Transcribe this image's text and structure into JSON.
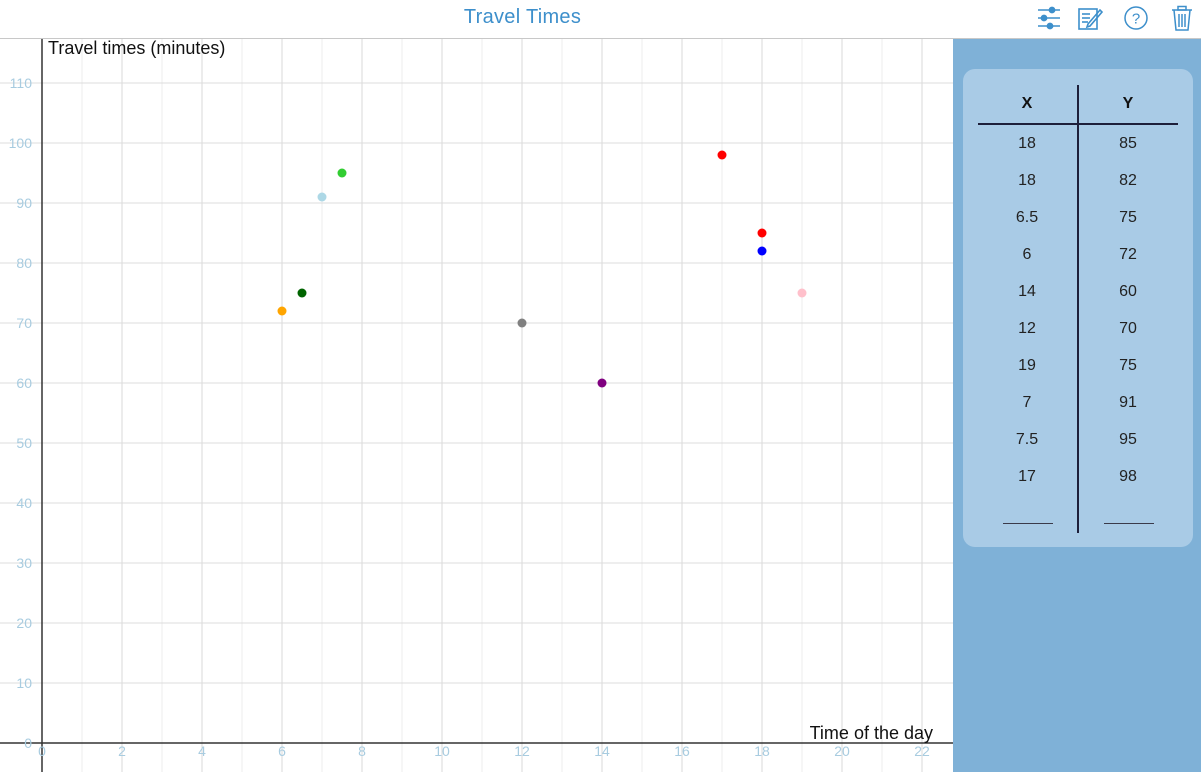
{
  "app": {
    "title": "Travel Times"
  },
  "toolbar": {
    "items": [
      {
        "name": "settings-sliders-icon"
      },
      {
        "name": "edit-note-icon"
      },
      {
        "name": "help-icon"
      },
      {
        "name": "trash-icon"
      }
    ]
  },
  "chart_data": {
    "type": "scatter",
    "title": "",
    "xlabel": "Time of the day",
    "ylabel": "Travel times (minutes)",
    "xlim": [
      0,
      22
    ],
    "ylim": [
      0,
      110
    ],
    "x_ticks": [
      0,
      2,
      4,
      6,
      8,
      10,
      12,
      14,
      16,
      18,
      20,
      22
    ],
    "y_ticks": [
      0,
      10,
      20,
      30,
      40,
      50,
      60,
      70,
      80,
      90,
      100,
      110
    ],
    "grid": true,
    "points": [
      {
        "x": 18,
        "y": 85,
        "color": "#ff0000"
      },
      {
        "x": 18,
        "y": 82,
        "color": "#0000ff"
      },
      {
        "x": 6.5,
        "y": 75,
        "color": "#006400"
      },
      {
        "x": 6,
        "y": 72,
        "color": "#ffa500"
      },
      {
        "x": 14,
        "y": 60,
        "color": "#800080"
      },
      {
        "x": 12,
        "y": 70,
        "color": "#808080"
      },
      {
        "x": 19,
        "y": 75,
        "color": "#ffc0cb"
      },
      {
        "x": 7,
        "y": 91,
        "color": "#add8e6"
      },
      {
        "x": 7.5,
        "y": 95,
        "color": "#32cd32"
      },
      {
        "x": 17,
        "y": 98,
        "color": "#ff0000"
      }
    ]
  },
  "table": {
    "headers": {
      "x": "X",
      "y": "Y"
    },
    "rows": [
      {
        "x": "18",
        "y": "85"
      },
      {
        "x": "18",
        "y": "82"
      },
      {
        "x": "6.5",
        "y": "75"
      },
      {
        "x": "6",
        "y": "72"
      },
      {
        "x": "14",
        "y": "60"
      },
      {
        "x": "12",
        "y": "70"
      },
      {
        "x": "19",
        "y": "75"
      },
      {
        "x": "7",
        "y": "91"
      },
      {
        "x": "7.5",
        "y": "95"
      },
      {
        "x": "17",
        "y": "98"
      }
    ]
  }
}
